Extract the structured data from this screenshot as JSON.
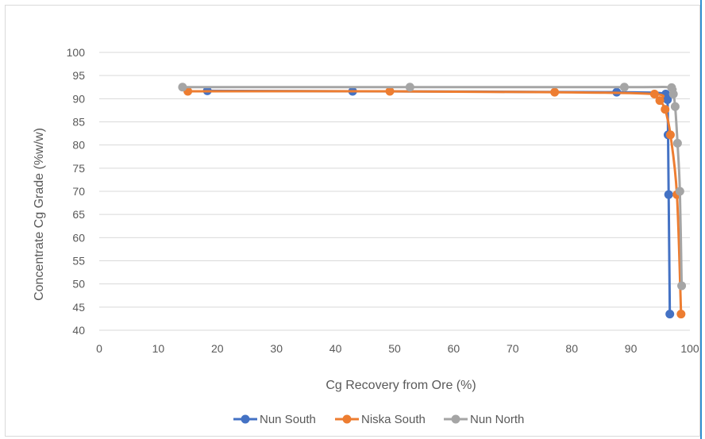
{
  "chart_data": {
    "type": "scatter",
    "title": "",
    "xlabel": "Cg Recovery from Ore (%)",
    "ylabel": "Concentrate Cg Grade (%w/w)",
    "xlim": [
      0,
      100
    ],
    "ylim": [
      40,
      100
    ],
    "x_ticks": [
      0,
      10,
      20,
      30,
      40,
      50,
      60,
      70,
      80,
      90,
      100
    ],
    "y_ticks": [
      40,
      45,
      50,
      55,
      60,
      65,
      70,
      75,
      80,
      85,
      90,
      95,
      100
    ],
    "grid": "horizontal",
    "legend": "bottom",
    "lines": "smoothed with markers",
    "series": [
      {
        "name": "Nun South",
        "color": "#4472c4",
        "x": [
          18.3,
          42.9,
          87.6,
          95.9,
          96.2,
          96.3,
          96.4,
          96.6
        ],
        "y": [
          91.7,
          91.6,
          91.4,
          91.0,
          89.8,
          82.2,
          69.3,
          43.5
        ]
      },
      {
        "name": "Niska South",
        "color": "#ed7d31",
        "x": [
          15.0,
          49.2,
          77.1,
          94.0,
          94.9,
          95.8,
          96.7,
          97.8,
          98.5
        ],
        "y": [
          91.6,
          91.6,
          91.4,
          91.0,
          89.6,
          87.7,
          82.2,
          69.3,
          43.5
        ]
      },
      {
        "name": "Nun North",
        "color": "#a5a5a5",
        "x": [
          14.1,
          52.6,
          88.9,
          96.9,
          97.2,
          97.5,
          97.9,
          98.3,
          98.6
        ],
        "y": [
          92.5,
          92.5,
          92.5,
          92.4,
          91.0,
          88.3,
          80.4,
          70.0,
          49.6
        ]
      }
    ]
  }
}
